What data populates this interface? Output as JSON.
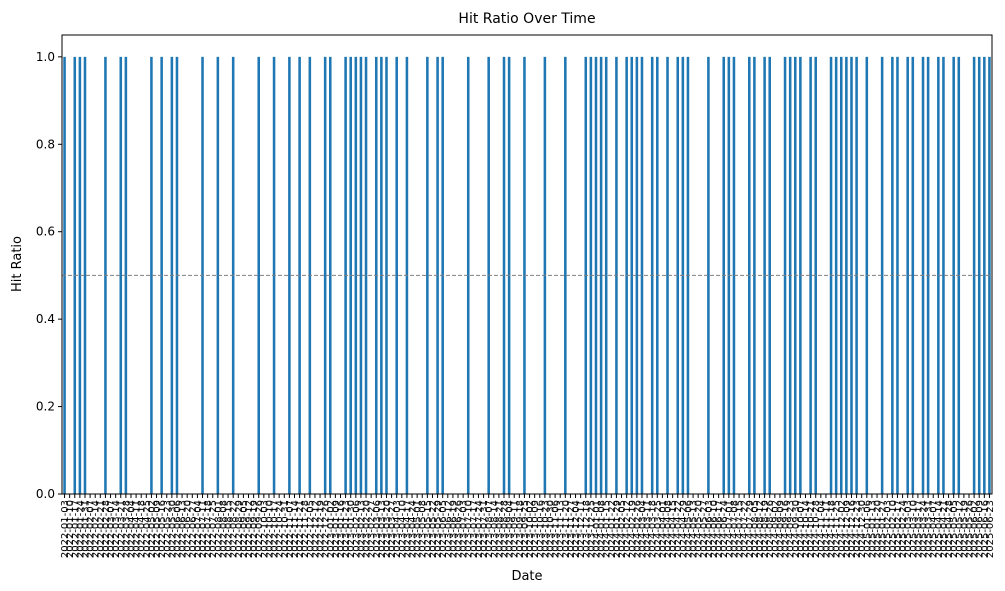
{
  "chart_data": {
    "type": "bar",
    "title": "Hit Ratio Over Time",
    "xlabel": "Date",
    "ylabel": "Hit Ratio",
    "color": "#1f77b4",
    "categories": [
      "2022-01-03",
      "2022-01-10",
      "2022-01-17",
      "2022-01-24",
      "2022-01-31",
      "2022-02-07",
      "2022-02-14",
      "2022-02-21",
      "2022-02-28",
      "2022-03-07",
      "2022-03-14",
      "2022-03-21",
      "2022-03-28",
      "2022-04-04",
      "2022-04-11",
      "2022-04-18",
      "2022-04-25",
      "2022-05-02",
      "2022-05-09",
      "2022-05-16",
      "2022-05-23",
      "2022-05-30",
      "2022-06-06",
      "2022-06-13",
      "2022-06-20",
      "2022-06-27",
      "2022-07-04",
      "2022-07-11",
      "2022-07-18",
      "2022-07-25",
      "2022-08-01",
      "2022-08-08",
      "2022-08-15",
      "2022-08-22",
      "2022-08-29",
      "2022-09-05",
      "2022-09-12",
      "2022-09-19",
      "2022-09-26",
      "2022-10-03",
      "2022-10-10",
      "2022-10-17",
      "2022-10-24",
      "2022-10-31",
      "2022-11-07",
      "2022-11-14",
      "2022-11-21",
      "2022-11-28",
      "2022-12-05",
      "2022-12-12",
      "2022-12-19",
      "2022-12-26",
      "2023-01-02",
      "2023-01-09",
      "2023-01-16",
      "2023-01-23",
      "2023-01-30",
      "2023-02-06",
      "2023-02-13",
      "2023-02-20",
      "2023-02-27",
      "2023-03-06",
      "2023-03-13",
      "2023-03-20",
      "2023-03-27",
      "2023-04-03",
      "2023-04-10",
      "2023-04-17",
      "2023-04-24",
      "2023-05-01",
      "2023-05-08",
      "2023-05-15",
      "2023-05-22",
      "2023-05-29",
      "2023-06-05",
      "2023-06-12",
      "2023-06-19",
      "2023-06-26",
      "2023-07-03",
      "2023-07-10",
      "2023-07-17",
      "2023-07-24",
      "2023-07-31",
      "2023-08-07",
      "2023-08-14",
      "2023-08-21",
      "2023-08-28",
      "2023-09-04",
      "2023-09-11",
      "2023-09-18",
      "2023-09-25",
      "2023-10-02",
      "2023-10-09",
      "2023-10-16",
      "2023-10-23",
      "2023-10-30",
      "2023-11-06",
      "2023-11-13",
      "2023-11-20",
      "2023-11-27",
      "2023-12-04",
      "2023-12-11",
      "2023-12-18",
      "2023-12-25",
      "2024-01-01",
      "2024-01-08",
      "2024-01-15",
      "2024-01-22",
      "2024-01-29",
      "2024-02-05",
      "2024-02-12",
      "2024-02-19",
      "2024-02-26",
      "2024-03-04",
      "2024-03-11",
      "2024-03-18",
      "2024-03-25",
      "2024-04-01",
      "2024-04-08",
      "2024-04-15",
      "2024-04-22",
      "2024-04-29",
      "2024-05-06",
      "2024-05-13",
      "2024-05-20",
      "2024-05-27",
      "2024-06-03",
      "2024-06-10",
      "2024-06-17",
      "2024-06-24",
      "2024-07-01",
      "2024-07-08",
      "2024-07-15",
      "2024-07-22",
      "2024-07-29",
      "2024-08-05",
      "2024-08-12",
      "2024-08-19",
      "2024-08-26",
      "2024-09-02",
      "2024-09-09",
      "2024-09-16",
      "2024-09-23",
      "2024-09-30",
      "2024-10-07",
      "2024-10-14",
      "2024-10-21",
      "2024-10-28",
      "2024-11-04",
      "2024-11-11",
      "2024-11-18",
      "2024-11-25",
      "2024-12-02",
      "2024-12-09",
      "2024-12-16",
      "2024-12-23",
      "2024-12-30",
      "2025-01-06",
      "2025-01-13",
      "2025-01-20",
      "2025-01-27",
      "2025-02-03",
      "2025-02-10",
      "2025-02-17",
      "2025-02-24",
      "2025-03-03",
      "2025-03-10",
      "2025-03-17",
      "2025-03-24",
      "2025-03-31",
      "2025-04-07",
      "2025-04-14",
      "2025-04-21",
      "2025-04-28",
      "2025-05-05",
      "2025-05-12",
      "2025-05-19",
      "2025-05-26",
      "2025-06-02",
      "2025-06-09",
      "2025-06-16",
      "2025-06-23"
    ],
    "values": [
      1,
      0,
      1,
      1,
      1,
      0,
      0,
      0,
      1,
      0,
      0,
      1,
      1,
      0,
      0,
      0,
      0,
      1,
      0,
      1,
      0,
      1,
      1,
      0,
      0,
      0,
      0,
      1,
      0,
      0,
      1,
      0,
      0,
      1,
      0,
      0,
      0,
      0,
      1,
      0,
      0,
      1,
      0,
      0,
      1,
      0,
      1,
      0,
      1,
      0,
      0,
      1,
      1,
      0,
      0,
      1,
      1,
      1,
      1,
      1,
      0,
      1,
      1,
      1,
      0,
      1,
      0,
      1,
      0,
      0,
      0,
      1,
      0,
      1,
      1,
      0,
      0,
      0,
      0,
      1,
      0,
      0,
      0,
      1,
      0,
      0,
      1,
      1,
      0,
      0,
      1,
      0,
      0,
      0,
      1,
      0,
      0,
      0,
      1,
      0,
      0,
      0,
      1,
      1,
      1,
      1,
      1,
      0,
      1,
      0,
      1,
      1,
      1,
      1,
      0,
      1,
      1,
      0,
      1,
      0,
      1,
      1,
      1,
      0,
      0,
      0,
      1,
      0,
      0,
      1,
      1,
      1,
      0,
      0,
      1,
      1,
      0,
      1,
      1,
      0,
      0,
      1,
      1,
      1,
      1,
      0,
      1,
      1,
      0,
      0,
      1,
      1,
      1,
      1,
      1,
      1,
      0,
      1,
      0,
      0,
      1,
      0,
      1,
      1,
      0,
      1,
      1,
      0,
      1,
      1,
      0,
      1,
      1,
      0,
      1,
      1,
      0,
      0,
      1,
      1,
      1,
      1
    ],
    "hline": 0.5,
    "ylim": [
      0,
      1.05
    ],
    "yticks": [
      {
        "value": 0,
        "label": "0.0"
      },
      {
        "value": 0.2,
        "label": "0.2"
      },
      {
        "value": 0.4,
        "label": "0.4"
      },
      {
        "value": 0.6,
        "label": "0.6"
      },
      {
        "value": 0.8,
        "label": "0.8"
      },
      {
        "value": 1,
        "label": "1.0"
      }
    ]
  }
}
